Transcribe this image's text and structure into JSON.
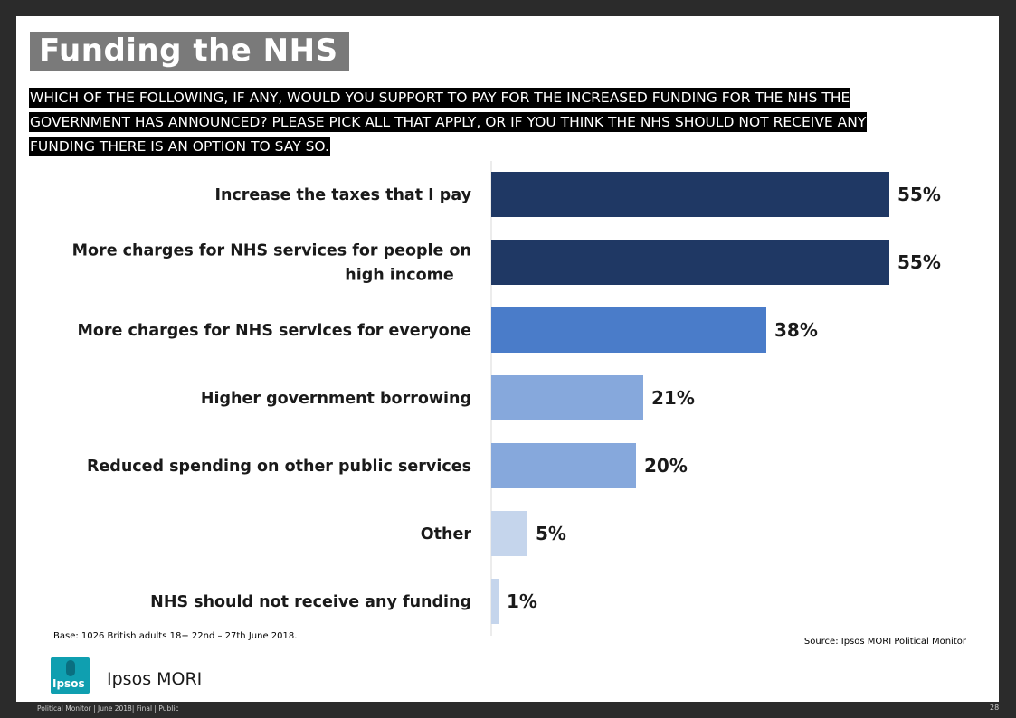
{
  "title": "Funding the NHS",
  "question": "WHICH OF THE FOLLOWING, IF ANY, WOULD YOU SUPPORT TO PAY FOR THE INCREASED FUNDING FOR THE NHS THE GOVERNMENT HAS ANNOUNCED?  PLEASE PICK ALL THAT APPLY, OR IF YOU THINK THE NHS SHOULD NOT RECEIVE ANY FUNDING THERE IS AN OPTION TO SAY SO.",
  "chart_data": {
    "type": "bar",
    "orientation": "horizontal",
    "categories": [
      [
        "Increase the taxes that I pay"
      ],
      [
        "More charges for NHS services for people on",
        "high income"
      ],
      [
        "More charges for NHS services for everyone"
      ],
      [
        "Higher government borrowing"
      ],
      [
        "Reduced spending on other public services"
      ],
      [
        "Other"
      ],
      [
        "NHS should not receive any funding"
      ]
    ],
    "values": [
      55,
      55,
      38,
      21,
      20,
      5,
      1
    ],
    "value_labels": [
      "55%",
      "55%",
      "38%",
      "21%",
      "20%",
      "5%",
      "1%"
    ],
    "colors": [
      "#1f3864",
      "#1f3864",
      "#4a7cc9",
      "#86a8dc",
      "#86a8dc",
      "#c5d5ec",
      "#c5d5ec"
    ],
    "xlim": [
      0,
      60
    ],
    "grid": false,
    "legend": "none"
  },
  "notes": {
    "base": "Base:  1026 British adults 18+ 22nd – 27th June 2018.",
    "source": "Source: Ipsos MORI Political Monitor"
  },
  "branding": {
    "logo_text": "Ipsos",
    "name": "Ipsos MORI",
    "accent_color": "#0f9fb0"
  },
  "footer": {
    "left": "Political Monitor | June 2018| Final |  Public",
    "page": "28"
  }
}
